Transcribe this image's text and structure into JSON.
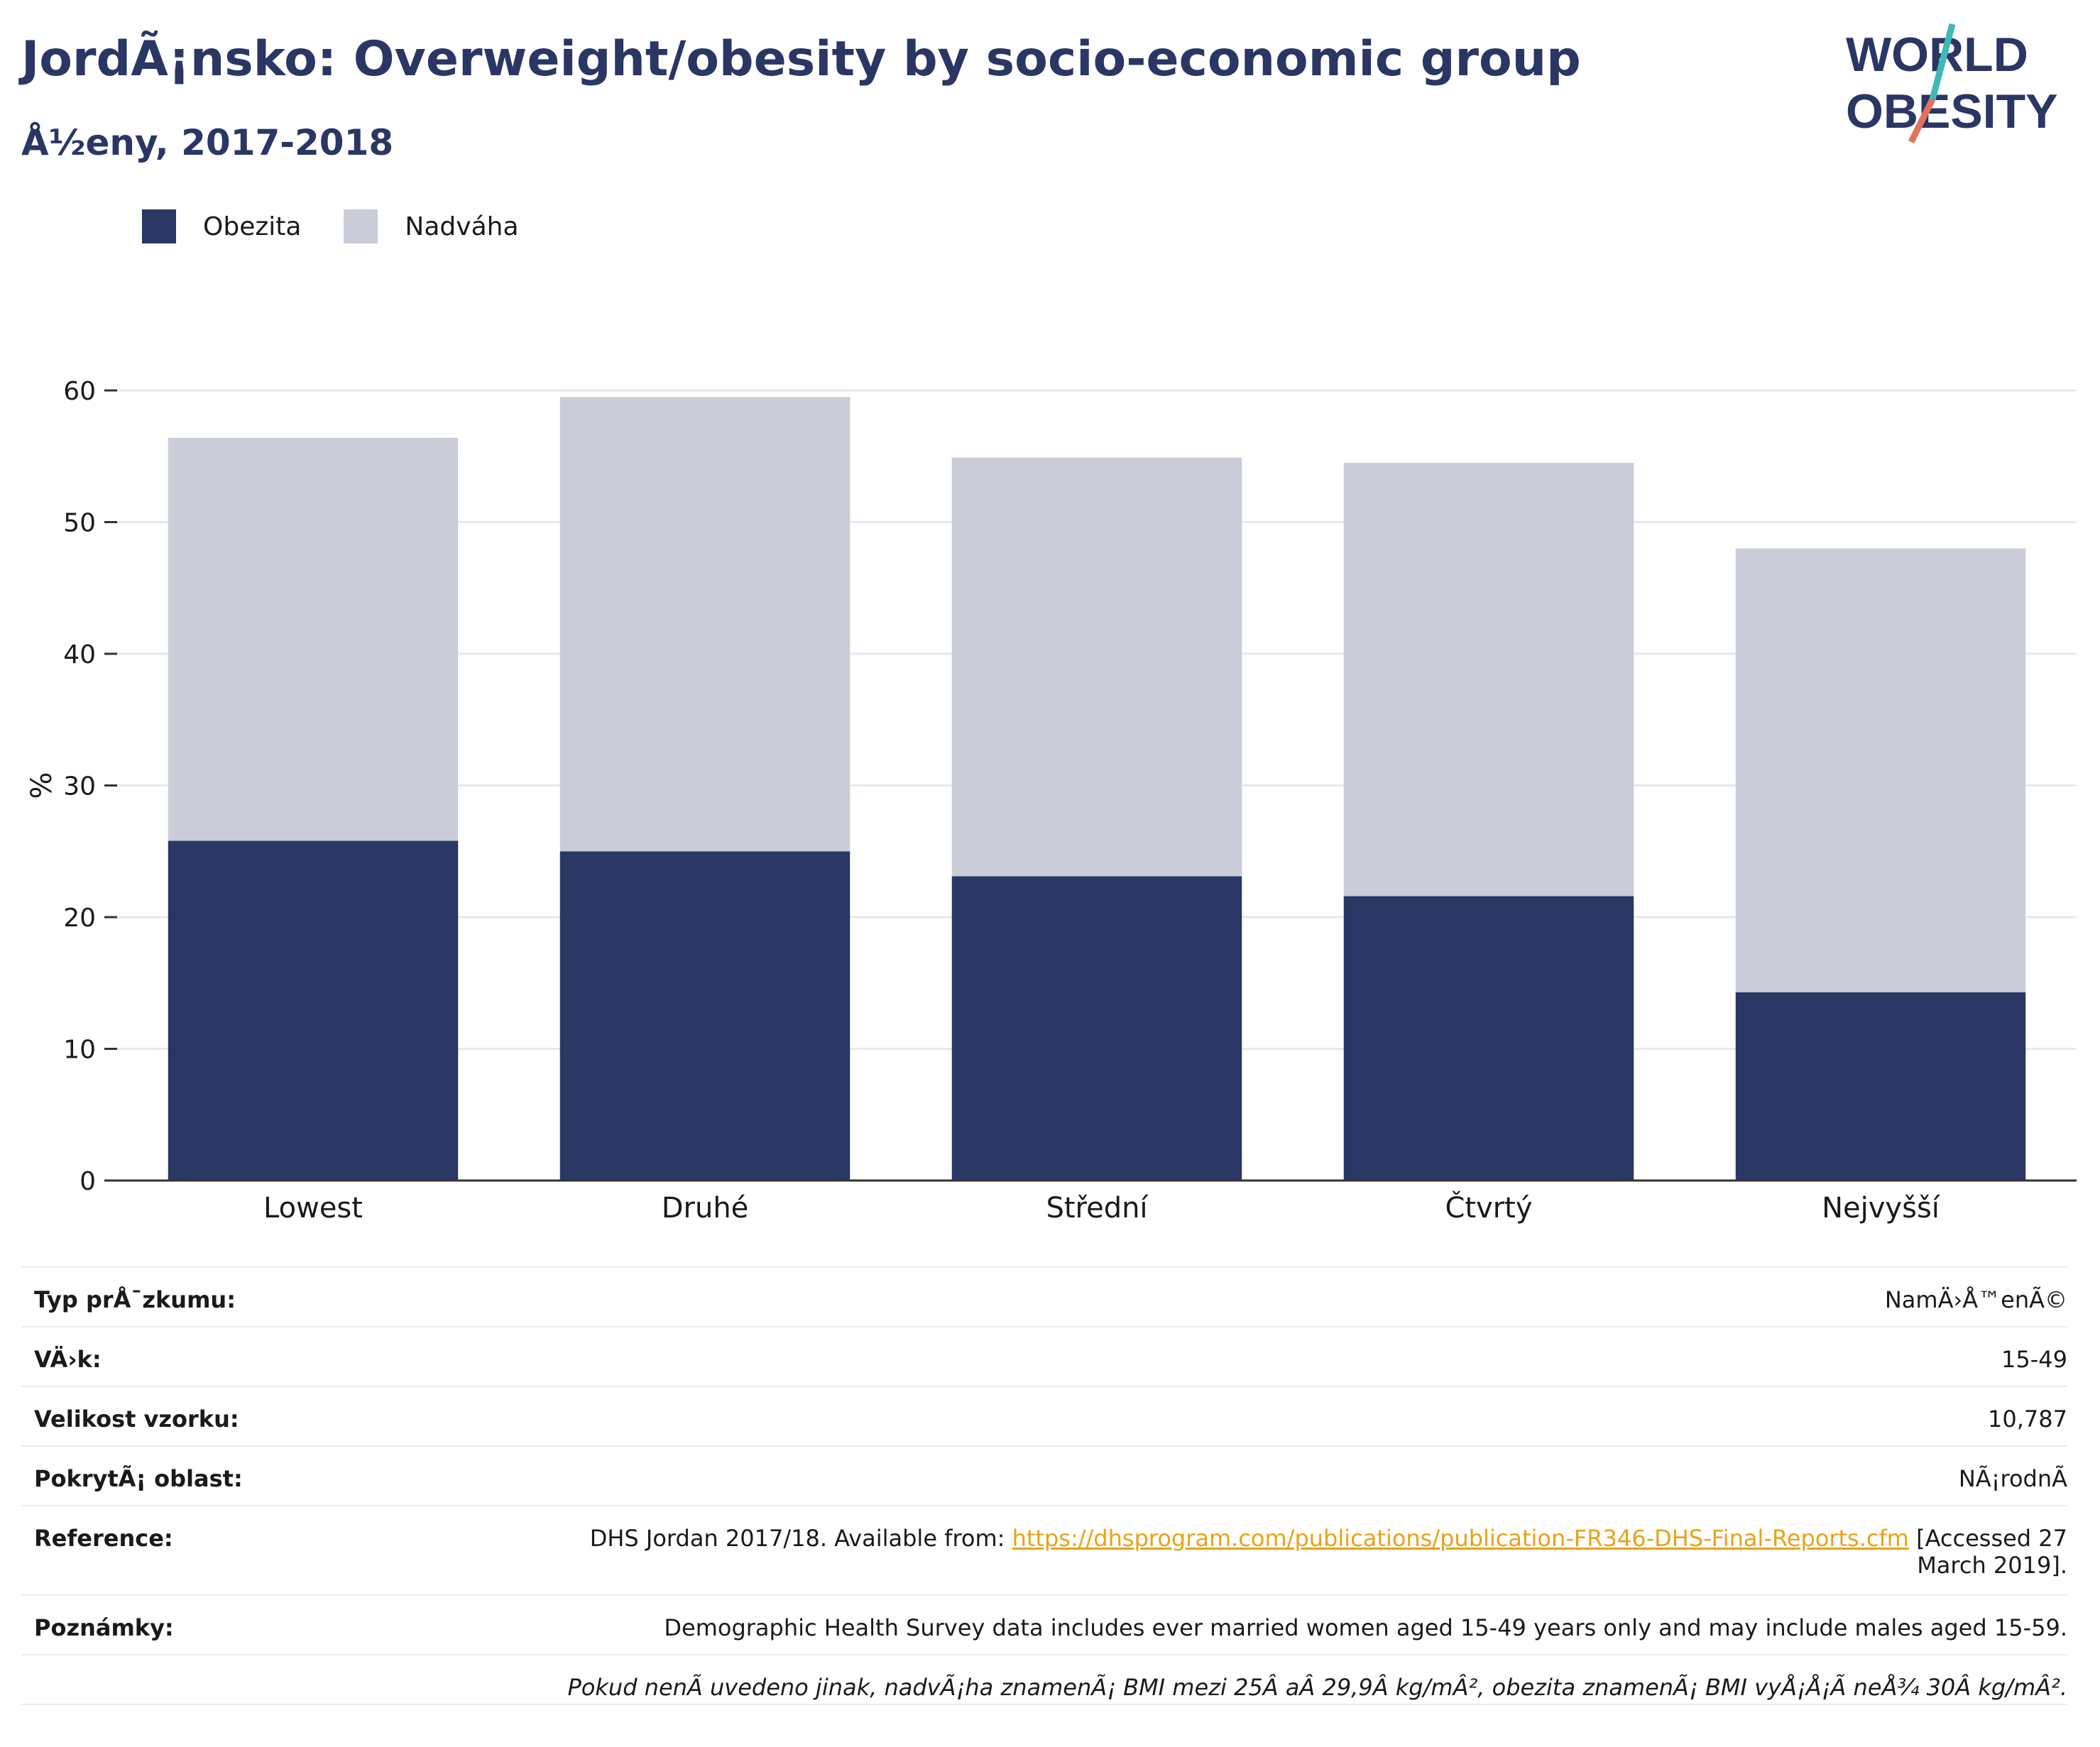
{
  "header": {
    "title": "JordÃ¡nsko: Overweight/obesity by socio-economic group",
    "subtitle": "Å½eny, 2017-2018"
  },
  "logo": {
    "line1": "WORLD",
    "line2": "OBESITY"
  },
  "chart_data": {
    "type": "bar",
    "stacked": true,
    "categories": [
      "Lowest",
      "Druhé",
      "Střední",
      "Čtvrtý",
      "Nejvyšší"
    ],
    "series": [
      {
        "name": "Obezita",
        "color": "#2a3664",
        "values": [
          25.8,
          25.0,
          23.1,
          21.6,
          14.3
        ]
      },
      {
        "name": "Nadváha",
        "color": "#cacdd8",
        "values": [
          30.6,
          34.5,
          31.8,
          32.9,
          33.7
        ]
      }
    ],
    "xlabel": "",
    "ylabel": "%",
    "ylim": [
      0,
      60
    ],
    "yticks": [
      0,
      10,
      20,
      30,
      40,
      50,
      60
    ],
    "grid": true,
    "legend_position": "top-left"
  },
  "info": {
    "rows": [
      {
        "key": "Typ prÅ¯zkumu:",
        "value": "NamÄ›Å™enÃ©"
      },
      {
        "key": "VÄ›k:",
        "value": "15-49"
      },
      {
        "key": "Velikost vzorku:",
        "value": "10,787"
      },
      {
        "key": "PokrytÃ¡ oblast:",
        "value": "NÃ¡rodnÃ"
      }
    ],
    "reference": {
      "key": "Reference:",
      "prefix": "DHS Jordan 2017/18. Available from: ",
      "link": "https://dhsprogram.com/publications/publication-FR346-DHS-Final-Reports.cfm",
      "suffix": " [Accessed 27",
      "line2": "March 2019]."
    },
    "notes": {
      "key": "Poznámky:",
      "value": "Demographic Health Survey data includes ever married women aged 15-49 years only and may include males aged 15-59."
    },
    "footnote": "Pokud nenÃ uvedeno jinak, nadvÃ¡ha znamenÃ¡ BMI mezi 25Â aÂ 29,9Â kg/mÂ², obezita znamenÃ¡ BMI vyÅ¡Å¡Ã neÅ¾ 30Â kg/mÂ²."
  }
}
